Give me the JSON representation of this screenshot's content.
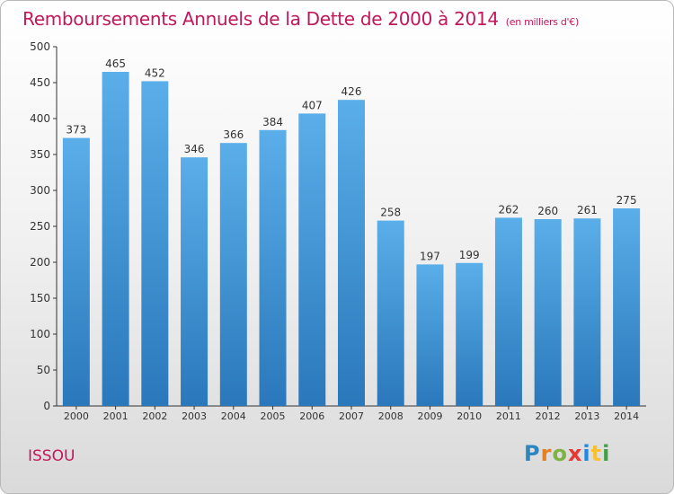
{
  "chart_data": {
    "type": "bar",
    "title": "Remboursements Annuels de la Dette de 2000 à 2014",
    "subtitle": "(en milliers d'€)",
    "categories": [
      "2000",
      "2001",
      "2002",
      "2003",
      "2004",
      "2005",
      "2006",
      "2007",
      "2008",
      "2009",
      "2010",
      "2011",
      "2012",
      "2013",
      "2014"
    ],
    "values": [
      373,
      465,
      452,
      346,
      366,
      384,
      407,
      426,
      258,
      197,
      199,
      262,
      260,
      261,
      275
    ],
    "ylim": [
      0,
      500
    ],
    "yticks": [
      0,
      50,
      100,
      150,
      200,
      250,
      300,
      350,
      400,
      450,
      500
    ],
    "grid": false,
    "bar_color": "#3d8fd6"
  },
  "footer": {
    "commune": "ISSOU",
    "logo_letters": [
      "P",
      "r",
      "o",
      "x",
      "i",
      "t",
      "i"
    ],
    "logo_colors": [
      "#2e86c1",
      "#e67e22",
      "#7cb342",
      "#e53935",
      "#1e88e5",
      "#fbc02d",
      "#43a047"
    ]
  }
}
